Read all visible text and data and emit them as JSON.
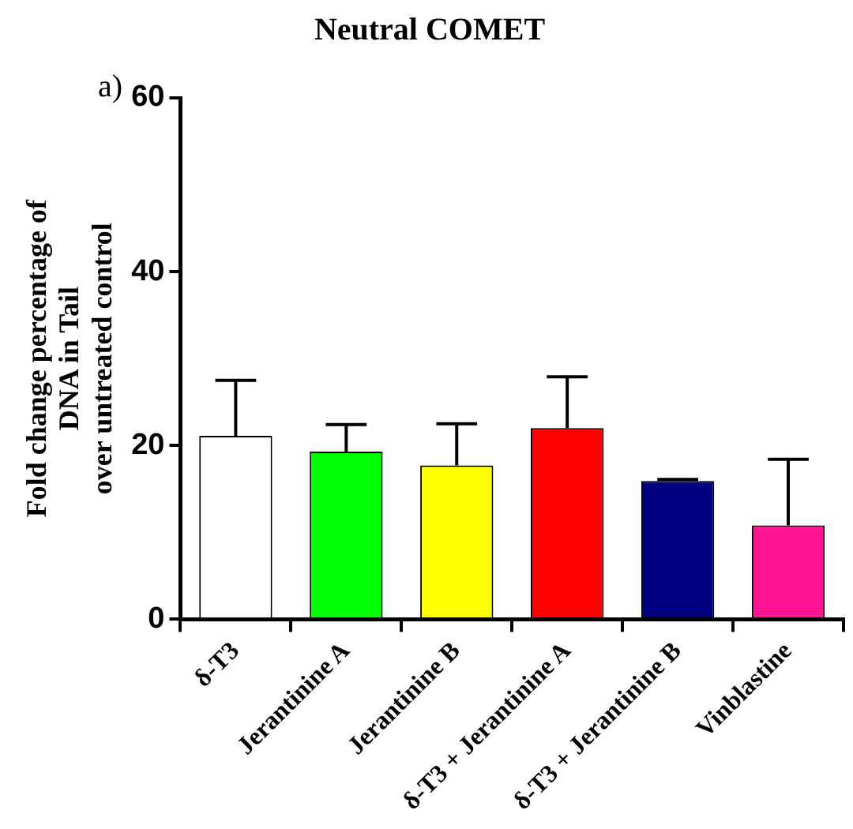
{
  "chart_data": {
    "type": "bar",
    "title": "Neutral COMET",
    "ylabel": "Fold change percentage of\nDNA in Tail\nover untreated control",
    "annotations": [
      "a)"
    ],
    "categories": [
      "δ-T3",
      "Jerantinine A",
      "Jerantinine B",
      "δ-T3 + Jerantinine A",
      "δ-T3 + Jerantinine B",
      "Vinblastine"
    ],
    "values": [
      21.1,
      19.3,
      17.7,
      22.0,
      15.9,
      10.8
    ],
    "colors": [
      "#ffffff",
      "#00ff00",
      "#ffff00",
      "#ff0000",
      "#000080",
      "#ff1493"
    ],
    "errors": [
      [
        21.1,
        27.5
      ],
      [
        19.3,
        22.4
      ],
      [
        17.7,
        22.5
      ],
      [
        22.0,
        27.9
      ],
      [
        15.9,
        16.1
      ],
      [
        10.8,
        18.4
      ]
    ],
    "ylim": [
      0,
      60
    ],
    "yticks": [
      0,
      20,
      40,
      60
    ],
    "grid": false,
    "legend": false
  }
}
